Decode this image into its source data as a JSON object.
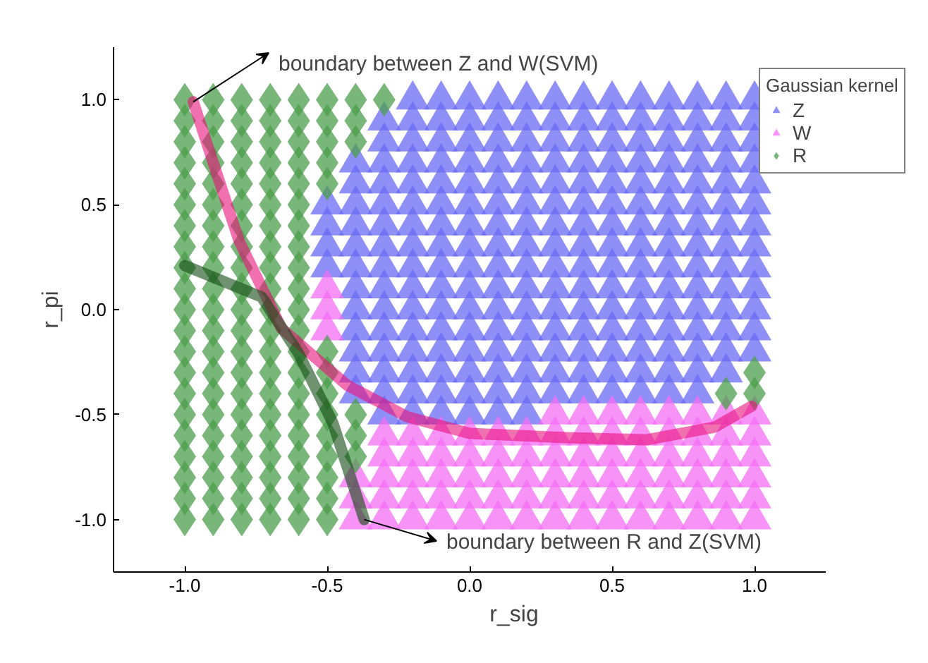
{
  "chart_data": {
    "type": "scatter",
    "xlabel": "r_sig",
    "ylabel": "r_pi",
    "legend_title": "Gaussian kernel",
    "legend": "top right",
    "grid": false,
    "xlim": [
      -1.25,
      1.25
    ],
    "ylim": [
      -1.25,
      1.25
    ],
    "xticks": [
      {
        "value": -1,
        "label": "-1.0"
      },
      {
        "value": -0.5,
        "label": "-0.5"
      },
      {
        "value": 0,
        "label": "0.0"
      },
      {
        "value": 0.5,
        "label": "0.5"
      },
      {
        "value": 1,
        "label": "1.0"
      }
    ],
    "yticks": [
      {
        "value": -1,
        "label": "-1.0"
      },
      {
        "value": -0.5,
        "label": "-0.5"
      },
      {
        "value": 0,
        "label": "0.0"
      },
      {
        "value": 0.5,
        "label": "0.5"
      },
      {
        "value": 1,
        "label": "1.0"
      }
    ],
    "series": [
      {
        "name": "Z",
        "color": "#6a6af5",
        "marker": "triangle",
        "x": [
          -0.2,
          -0.1,
          0,
          0.1,
          0.2,
          0.3,
          0.4,
          0.5,
          0.6,
          0.7,
          0.8,
          0.9,
          1,
          -0.3,
          -0.2,
          -0.1,
          0,
          0.1,
          0.2,
          0.3,
          0.4,
          0.5,
          0.6,
          0.7,
          0.8,
          0.9,
          1,
          -0.3,
          -0.2,
          -0.1,
          0,
          0.1,
          0.2,
          0.3,
          0.4,
          0.5,
          0.6,
          0.7,
          0.8,
          0.9,
          1,
          -0.4,
          -0.3,
          -0.2,
          -0.1,
          0,
          0.1,
          0.2,
          0.3,
          0.4,
          0.5,
          0.6,
          0.7,
          0.8,
          0.9,
          1,
          -0.4,
          -0.3,
          -0.2,
          -0.1,
          0,
          0.1,
          0.2,
          0.3,
          0.4,
          0.5,
          0.6,
          0.7,
          0.8,
          0.9,
          1,
          -0.5,
          -0.4,
          -0.3,
          -0.2,
          -0.1,
          0,
          0.1,
          0.2,
          0.3,
          0.4,
          0.5,
          0.6,
          0.7,
          0.8,
          0.9,
          1,
          -0.5,
          -0.4,
          -0.3,
          -0.2,
          -0.1,
          0,
          0.1,
          0.2,
          0.3,
          0.4,
          0.5,
          0.6,
          0.7,
          0.8,
          0.9,
          1,
          -0.5,
          -0.4,
          -0.3,
          -0.2,
          -0.1,
          0,
          0.1,
          0.2,
          0.3,
          0.4,
          0.5,
          0.6,
          0.7,
          0.8,
          0.9,
          1,
          -0.5,
          -0.4,
          -0.3,
          -0.2,
          -0.1,
          0,
          0.1,
          0.2,
          0.3,
          0.4,
          0.5,
          0.6,
          0.7,
          0.8,
          0.9,
          1,
          -0.4,
          -0.3,
          -0.2,
          -0.1,
          0,
          0.1,
          0.2,
          0.3,
          0.4,
          0.5,
          0.6,
          0.7,
          0.8,
          0.9,
          1,
          -0.4,
          -0.3,
          -0.2,
          -0.1,
          0,
          0.1,
          0.2,
          0.3,
          0.4,
          0.5,
          0.6,
          0.7,
          0.8,
          0.9,
          1,
          -0.4,
          -0.3,
          -0.2,
          -0.1,
          0,
          0.1,
          0.2,
          0.3,
          0.4,
          0.5,
          0.6,
          0.7,
          0.8,
          0.9,
          1,
          -0.4,
          -0.3,
          -0.2,
          -0.1,
          0,
          0.1,
          0.2,
          0.3,
          0.4,
          0.5,
          0.6,
          0.7,
          0.8,
          0.9,
          1,
          -0.4,
          -0.3,
          -0.2,
          -0.1,
          0,
          0.1,
          0.2,
          0.3,
          0.4,
          0.5,
          0.6,
          0.7,
          0.8,
          0.9,
          -0.4,
          -0.3,
          -0.2,
          -0.1,
          0,
          0.1,
          0.2,
          0.3,
          0.4,
          0.5,
          0.6,
          0.7,
          0.8,
          -0.3,
          -0.2,
          -0.1,
          0,
          0.1,
          0.2
        ],
        "values": [
          1,
          1,
          1,
          1,
          1,
          1,
          1,
          1,
          1,
          1,
          1,
          1,
          1,
          0.9,
          0.9,
          0.9,
          0.9,
          0.9,
          0.9,
          0.9,
          0.9,
          0.9,
          0.9,
          0.9,
          0.9,
          0.9,
          0.9,
          0.8,
          0.8,
          0.8,
          0.8,
          0.8,
          0.8,
          0.8,
          0.8,
          0.8,
          0.8,
          0.8,
          0.8,
          0.8,
          0.8,
          0.7,
          0.7,
          0.7,
          0.7,
          0.7,
          0.7,
          0.7,
          0.7,
          0.7,
          0.7,
          0.7,
          0.7,
          0.7,
          0.7,
          0.7,
          0.6,
          0.6,
          0.6,
          0.6,
          0.6,
          0.6,
          0.6,
          0.6,
          0.6,
          0.6,
          0.6,
          0.6,
          0.6,
          0.6,
          0.6,
          0.5,
          0.5,
          0.5,
          0.5,
          0.5,
          0.5,
          0.5,
          0.5,
          0.5,
          0.5,
          0.5,
          0.5,
          0.5,
          0.5,
          0.5,
          0.5,
          0.4,
          0.4,
          0.4,
          0.4,
          0.4,
          0.4,
          0.4,
          0.4,
          0.4,
          0.4,
          0.4,
          0.4,
          0.4,
          0.4,
          0.4,
          0.4,
          0.3,
          0.3,
          0.3,
          0.3,
          0.3,
          0.3,
          0.3,
          0.3,
          0.3,
          0.3,
          0.3,
          0.3,
          0.3,
          0.3,
          0.3,
          0.3,
          0.2,
          0.2,
          0.2,
          0.2,
          0.2,
          0.2,
          0.2,
          0.2,
          0.2,
          0.2,
          0.2,
          0.2,
          0.2,
          0.2,
          0.2,
          0.2,
          0.1,
          0.1,
          0.1,
          0.1,
          0.1,
          0.1,
          0.1,
          0.1,
          0.1,
          0.1,
          0.1,
          0.1,
          0.1,
          0.1,
          0.1,
          0,
          0,
          0,
          0,
          0,
          0,
          0,
          0,
          0,
          0,
          0,
          0,
          0,
          0,
          0,
          -0.1,
          -0.1,
          -0.1,
          -0.1,
          -0.1,
          -0.1,
          -0.1,
          -0.1,
          -0.1,
          -0.1,
          -0.1,
          -0.1,
          -0.1,
          -0.1,
          -0.1,
          -0.2,
          -0.2,
          -0.2,
          -0.2,
          -0.2,
          -0.2,
          -0.2,
          -0.2,
          -0.2,
          -0.2,
          -0.2,
          -0.2,
          -0.2,
          -0.2,
          -0.2,
          -0.3,
          -0.3,
          -0.3,
          -0.3,
          -0.3,
          -0.3,
          -0.3,
          -0.3,
          -0.3,
          -0.3,
          -0.3,
          -0.3,
          -0.3,
          -0.3,
          -0.4,
          -0.4,
          -0.4,
          -0.4,
          -0.4,
          -0.4,
          -0.4,
          -0.4,
          -0.4,
          -0.4,
          -0.4,
          -0.4,
          -0.4,
          -0.5,
          -0.5,
          -0.5,
          -0.5,
          -0.5,
          -0.5
        ]
      },
      {
        "name": "W",
        "color": "#f46ef4",
        "marker": "triangle",
        "x": [
          -0.5,
          -0.5,
          -0.5,
          0.3,
          0.4,
          0.5,
          0.6,
          0.7,
          0.8,
          0.9,
          1,
          -0.3,
          -0.2,
          -0.1,
          0,
          0.1,
          0.2,
          0.3,
          0.4,
          0.5,
          0.6,
          0.7,
          0.8,
          0.9,
          1,
          -0.3,
          -0.2,
          -0.1,
          0,
          0.1,
          0.2,
          0.3,
          0.4,
          0.5,
          0.6,
          0.7,
          0.8,
          0.9,
          1,
          -0.4,
          -0.3,
          -0.2,
          -0.1,
          0,
          0.1,
          0.2,
          0.3,
          0.4,
          0.5,
          0.6,
          0.7,
          0.8,
          0.9,
          1,
          -0.4,
          -0.3,
          -0.2,
          -0.1,
          0,
          0.1,
          0.2,
          0.3,
          0.4,
          0.5,
          0.6,
          0.7,
          0.8,
          0.9,
          1,
          -0.4,
          -0.3,
          -0.2,
          -0.1,
          0,
          0.1,
          0.2,
          0.3,
          0.4,
          0.5,
          0.6,
          0.7,
          0.8,
          0.9,
          1
        ],
        "values": [
          0.1,
          0,
          -0.1,
          -0.5,
          -0.5,
          -0.5,
          -0.5,
          -0.5,
          -0.5,
          -0.5,
          -0.5,
          -0.6,
          -0.6,
          -0.6,
          -0.6,
          -0.6,
          -0.6,
          -0.6,
          -0.6,
          -0.6,
          -0.6,
          -0.6,
          -0.6,
          -0.6,
          -0.6,
          -0.7,
          -0.7,
          -0.7,
          -0.7,
          -0.7,
          -0.7,
          -0.7,
          -0.7,
          -0.7,
          -0.7,
          -0.7,
          -0.7,
          -0.7,
          -0.7,
          -0.8,
          -0.8,
          -0.8,
          -0.8,
          -0.8,
          -0.8,
          -0.8,
          -0.8,
          -0.8,
          -0.8,
          -0.8,
          -0.8,
          -0.8,
          -0.8,
          -0.8,
          -0.9,
          -0.9,
          -0.9,
          -0.9,
          -0.9,
          -0.9,
          -0.9,
          -0.9,
          -0.9,
          -0.9,
          -0.9,
          -0.9,
          -0.9,
          -0.9,
          -0.9,
          -1,
          -1,
          -1,
          -1,
          -1,
          -1,
          -1,
          -1,
          -1,
          -1,
          -1,
          -1,
          -1,
          -1,
          -1
        ]
      },
      {
        "name": "R",
        "color": "#4c9e4c",
        "marker": "diamond",
        "x": [
          -1,
          -0.9,
          -0.8,
          -0.7,
          -0.6,
          -0.5,
          -0.4,
          -0.3,
          -1,
          -0.9,
          -0.8,
          -0.7,
          -0.6,
          -0.5,
          -0.4,
          -1,
          -0.9,
          -0.8,
          -0.7,
          -0.6,
          -0.5,
          -0.4,
          -1,
          -0.9,
          -0.8,
          -0.7,
          -0.6,
          -0.5,
          -1,
          -0.9,
          -0.8,
          -0.7,
          -0.6,
          -0.5,
          -1,
          -0.9,
          -0.8,
          -0.7,
          -0.6,
          -1,
          -0.9,
          -0.8,
          -0.7,
          -0.6,
          -1,
          -0.9,
          -0.8,
          -0.7,
          -0.6,
          -1,
          -0.9,
          -0.8,
          -0.7,
          -0.6,
          -1,
          -0.9,
          -0.8,
          -0.7,
          -0.6,
          -1,
          -0.9,
          -0.8,
          -0.7,
          -0.6,
          -1,
          -0.9,
          -0.8,
          -0.7,
          -0.6,
          -1,
          -0.9,
          -0.8,
          -0.7,
          -0.6,
          -0.5,
          -1,
          -0.9,
          -0.8,
          -0.7,
          -0.6,
          -0.5,
          1,
          -1,
          -0.9,
          -0.8,
          -0.7,
          -0.6,
          -0.5,
          0.9,
          1,
          -1,
          -0.9,
          -0.8,
          -0.7,
          -0.6,
          -0.5,
          -0.4,
          -1,
          -0.9,
          -0.8,
          -0.7,
          -0.6,
          -0.5,
          -0.4,
          -1,
          -0.9,
          -0.8,
          -0.7,
          -0.6,
          -0.5,
          -0.4,
          -1,
          -0.9,
          -0.8,
          -0.7,
          -0.6,
          -0.5,
          -1,
          -0.9,
          -0.8,
          -0.7,
          -0.6,
          -0.5,
          -1,
          -0.9,
          -0.8,
          -0.7,
          -0.6,
          -0.5
        ],
        "values": [
          1,
          1,
          1,
          1,
          1,
          1,
          1,
          1,
          0.9,
          0.9,
          0.9,
          0.9,
          0.9,
          0.9,
          0.9,
          0.8,
          0.8,
          0.8,
          0.8,
          0.8,
          0.8,
          0.8,
          0.7,
          0.7,
          0.7,
          0.7,
          0.7,
          0.7,
          0.6,
          0.6,
          0.6,
          0.6,
          0.6,
          0.6,
          0.5,
          0.5,
          0.5,
          0.5,
          0.5,
          0.4,
          0.4,
          0.4,
          0.4,
          0.4,
          0.3,
          0.3,
          0.3,
          0.3,
          0.3,
          0.2,
          0.2,
          0.2,
          0.2,
          0.2,
          0.1,
          0.1,
          0.1,
          0.1,
          0.1,
          0,
          0,
          0,
          0,
          0,
          -0.1,
          -0.1,
          -0.1,
          -0.1,
          -0.1,
          -0.2,
          -0.2,
          -0.2,
          -0.2,
          -0.2,
          -0.2,
          -0.3,
          -0.3,
          -0.3,
          -0.3,
          -0.3,
          -0.3,
          -0.3,
          -0.4,
          -0.4,
          -0.4,
          -0.4,
          -0.4,
          -0.4,
          -0.4,
          -0.4,
          -0.5,
          -0.5,
          -0.5,
          -0.5,
          -0.5,
          -0.5,
          -0.5,
          -0.6,
          -0.6,
          -0.6,
          -0.6,
          -0.6,
          -0.6,
          -0.6,
          -0.7,
          -0.7,
          -0.7,
          -0.7,
          -0.7,
          -0.7,
          -0.7,
          -0.8,
          -0.8,
          -0.8,
          -0.8,
          -0.8,
          -0.8,
          -0.9,
          -0.9,
          -0.9,
          -0.9,
          -0.9,
          -0.9,
          -1,
          -1,
          -1,
          -1,
          -1,
          -1
        ]
      },
      {
        "type": "line",
        "color": "#e8107a",
        "x": [
          -0.97,
          -0.9,
          -0.81,
          -0.66,
          -0.43,
          -0.22,
          0,
          0.34,
          0.62,
          0.86,
          0.99
        ],
        "values": [
          0.99,
          0.7,
          0.33,
          -0.09,
          -0.36,
          -0.51,
          -0.59,
          -0.61,
          -0.62,
          -0.56,
          -0.46
        ]
      },
      {
        "type": "line",
        "color": "#104a10",
        "x": [
          -1.0,
          -0.73,
          -0.6,
          -0.48,
          -0.42,
          -0.37
        ],
        "values": [
          0.21,
          0.06,
          -0.21,
          -0.54,
          -0.79,
          -1.0
        ]
      }
    ],
    "annotations": [
      "boundary between Z and W(SVM)",
      "boundary between R and Z(SVM)"
    ]
  }
}
